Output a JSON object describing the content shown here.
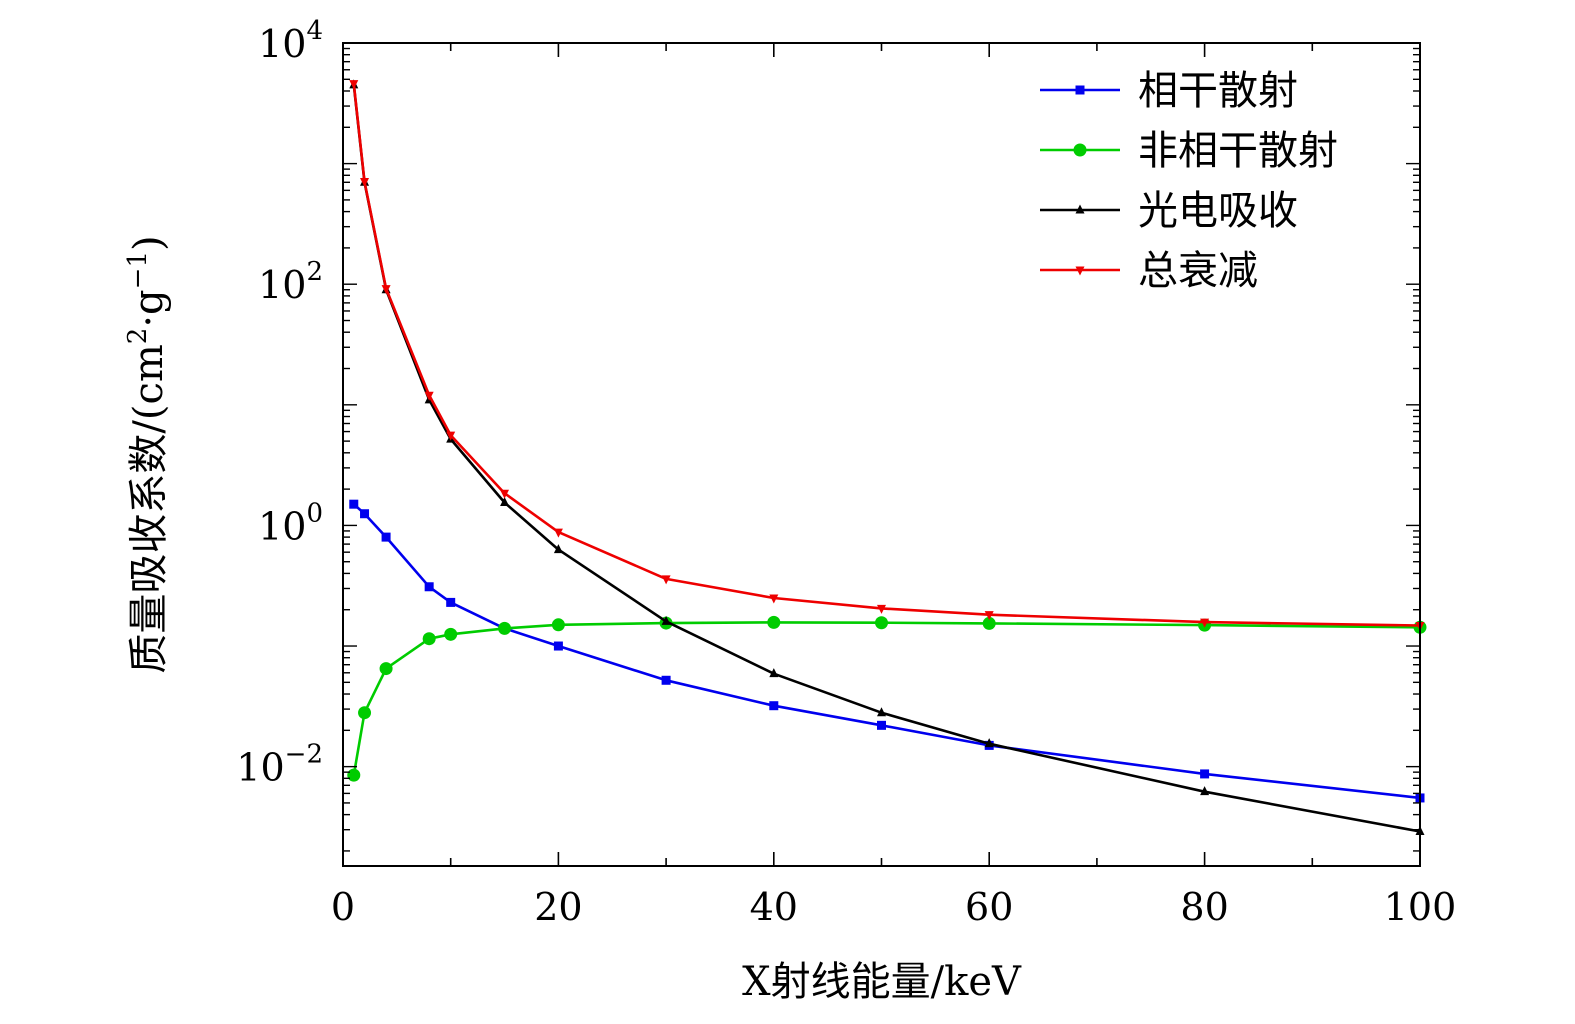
{
  "chart_data": {
    "type": "line",
    "xlabel": "X射线能量/keV",
    "ylabel_main": "质量吸收系数/(cm",
    "ylabel_sup1": "2",
    "ylabel_mid": "·g",
    "ylabel_sup2": "−1",
    "ylabel_end": ")",
    "y_scale": "log",
    "xlim": [
      0,
      100
    ],
    "ylim": [
      0.0015,
      10000
    ],
    "x_ticks": [
      0,
      20,
      40,
      60,
      80,
      100
    ],
    "x_tick_labels": [
      "0",
      "20",
      "40",
      "60",
      "80",
      "100"
    ],
    "y_ticks": [
      0.01,
      1,
      100,
      10000
    ],
    "y_tick_base": [
      "10",
      "10",
      "10",
      "10"
    ],
    "y_tick_exp": [
      "−2",
      "0",
      "2",
      "4"
    ],
    "grid": false,
    "legend_position": "top-right",
    "series": [
      {
        "name": "相干散射",
        "color": "#0000ee",
        "marker": "square",
        "x": [
          1,
          2,
          4,
          8,
          10,
          15,
          20,
          30,
          40,
          50,
          60,
          80,
          100
        ],
        "y": [
          1.5,
          1.25,
          0.8,
          0.31,
          0.23,
          0.14,
          0.1,
          0.052,
          0.032,
          0.022,
          0.015,
          0.0087,
          0.0055
        ]
      },
      {
        "name": "非相干散射",
        "color": "#00cc00",
        "marker": "circle",
        "x": [
          1,
          2,
          4,
          8,
          10,
          15,
          20,
          30,
          40,
          50,
          60,
          80,
          100
        ],
        "y": [
          0.0085,
          0.028,
          0.065,
          0.115,
          0.125,
          0.14,
          0.15,
          0.155,
          0.157,
          0.156,
          0.154,
          0.149,
          0.143
        ]
      },
      {
        "name": "光电吸收",
        "color": "#000000",
        "marker": "triangle-up",
        "x": [
          1,
          2,
          4,
          8,
          10,
          15,
          20,
          30,
          40,
          50,
          60,
          80,
          100
        ],
        "y": [
          4500,
          700,
          90,
          11,
          5.2,
          1.55,
          0.63,
          0.16,
          0.059,
          0.028,
          0.0155,
          0.0062,
          0.0029
        ]
      },
      {
        "name": "总衰减",
        "color": "#ee0000",
        "marker": "triangle-down",
        "x": [
          1,
          2,
          4,
          8,
          10,
          15,
          20,
          30,
          40,
          50,
          60,
          80,
          100
        ],
        "y": [
          4600,
          710,
          92,
          12,
          5.6,
          1.85,
          0.88,
          0.36,
          0.25,
          0.205,
          0.182,
          0.158,
          0.148
        ]
      }
    ]
  }
}
